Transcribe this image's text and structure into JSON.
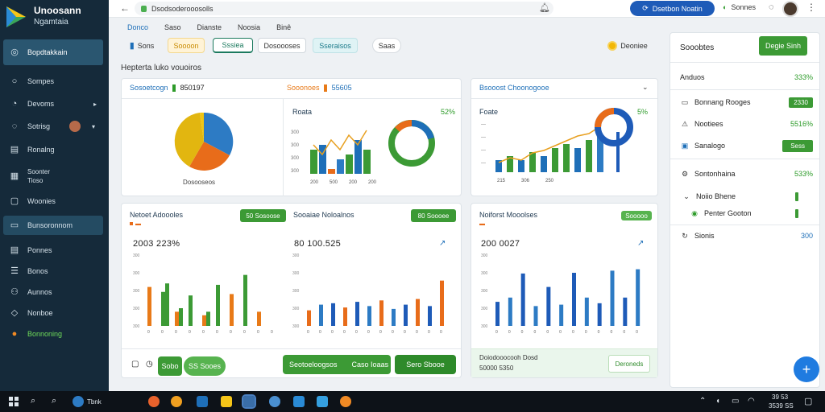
{
  "sidebar": {
    "brand_title": "Unoosann",
    "brand_subtitle": "Ngamtaia",
    "items": [
      {
        "label": "Bopdtakkain",
        "icon": "dashboard-icon"
      },
      {
        "label": "Sompes",
        "icon": "circle-icon"
      },
      {
        "label": "Devoms",
        "icon": "compass-icon"
      },
      {
        "label": "Sotrisg",
        "icon": "target-icon"
      },
      {
        "label": "Ronalng",
        "icon": "report-icon"
      },
      {
        "label": "Soonter",
        "sublabel": "Tioso",
        "icon": "calendar-icon"
      },
      {
        "label": "Woonies",
        "icon": "window-icon"
      },
      {
        "label": "Bunsoronnom",
        "icon": "folder-icon"
      },
      {
        "label": "Ponnes",
        "icon": "grid-icon"
      },
      {
        "label": "Bonos",
        "icon": "list-icon"
      },
      {
        "label": "Aunnos",
        "icon": "people-icon"
      },
      {
        "label": "Nonboe",
        "icon": "tag-icon"
      },
      {
        "label": "Bonnoning",
        "icon": "orange-circle-icon"
      }
    ]
  },
  "topbar": {
    "url": "Dsodsoderooosolls",
    "action_button": "Dsetbon Noatin",
    "status_label": "Sonnes"
  },
  "nav_tabs": [
    "Donco",
    "Saso",
    "Dianste",
    "Noosia",
    "Binê"
  ],
  "chips": {
    "a": "Sons",
    "b": "Soooon",
    "c": "Sssiea",
    "d": "Dosoooses",
    "e": "Sseraisos",
    "f": "Saas",
    "g": "Deoniee"
  },
  "section_title": "Hepterta luko vouoiros",
  "panels": {
    "p1": {
      "label": "Sosoetcogn",
      "value1": "850197",
      "value2_label": "Sooonoes",
      "value2": "55605",
      "pie_caption": "Dosooseos",
      "sub_label": "Roata",
      "sub_pct": "52%",
      "bar_ticks": [
        "300",
        "300",
        "300",
        "300"
      ],
      "bar_xlabels": [
        "200",
        "500",
        "200",
        "200"
      ]
    },
    "p2": {
      "label": "Bsooost Choonogooe",
      "sub_label": "Foate",
      "sub_pct": "5%",
      "bar_xlabels": [
        "215",
        "306",
        "250"
      ]
    },
    "p3": {
      "label": "Netoet Adoooles",
      "button": "50 Sosoose",
      "big_value": "2003 223%"
    },
    "p4": {
      "label": "Sooaiae Noloalnos",
      "button": "80 Soooee",
      "big_value": "80 100.525"
    },
    "p5": {
      "label": "Noiforst Mooolses",
      "button": "Sooooo",
      "big_value": "200 0027",
      "footer_text": "Doiodooocooh Dosd",
      "footer_value": "50000 5350",
      "footer_button": "Deroneds"
    }
  },
  "bottom_buttons": {
    "b1": "Sobo",
    "b2": "SS Sooes",
    "b3": "Seotoeloogsos",
    "b4": "Caso Ioaas",
    "b5": "Sero Sbooe"
  },
  "right_panel": {
    "title": "Sooobtes",
    "button": "Degie Sinh",
    "rows": [
      {
        "label": "Anduos",
        "value": "333%"
      },
      {
        "label": "Bonnang Rooges",
        "value": "2330",
        "icon": "card-icon"
      },
      {
        "label": "Nootiees",
        "value": "5516%",
        "icon": "alert-icon"
      },
      {
        "label": "Sanalogo",
        "value": "Sess",
        "icon": "chat-icon"
      },
      {
        "label": "Sontonhaina",
        "value": "533%",
        "icon": "gear-icon"
      },
      {
        "label": "Noiio Bhene",
        "icon": "chevron-icon"
      },
      {
        "label": "Penter Gooton",
        "icon": "check-circle-icon"
      },
      {
        "label": "Sionis",
        "value": "300",
        "icon": "refresh-icon"
      }
    ]
  },
  "taskbar": {
    "search_label": "Tbnk",
    "clock_time": "39 53",
    "clock_date": "3539 SS"
  },
  "charts": {
    "c1_colors": [
      "#e6b20a",
      "#f0c614",
      "#2d7bc4",
      "#e86c1a"
    ],
    "c2_values": [
      5,
      6,
      1,
      3,
      4,
      7,
      5
    ],
    "line_values": [
      6,
      4,
      7,
      5,
      8,
      6,
      9
    ]
  },
  "chart_data": [
    {
      "type": "bar",
      "categories": [
        "1",
        "2",
        "3",
        "4",
        "5",
        "6",
        "7",
        "8",
        "9",
        "10"
      ],
      "series": [
        {
          "values": [
            55,
            48,
            20,
            43,
            15,
            58,
            45,
            72,
            20,
            0
          ]
        },
        {
          "values": [
            0,
            60,
            25,
            0,
            20,
            0,
            0,
            0,
            0,
            0
          ]
        }
      ],
      "ylim": [
        0,
        100
      ]
    },
    {
      "type": "bar",
      "categories": [
        "1",
        "2",
        "3",
        "4",
        "5",
        "6",
        "7",
        "8",
        "9",
        "10",
        "11",
        "12"
      ],
      "series": [
        {
          "values": [
            22,
            30,
            32,
            26,
            34,
            28,
            36,
            24,
            30,
            38,
            28,
            64
          ]
        }
      ],
      "ylim": [
        0,
        100
      ]
    },
    {
      "type": "bar",
      "categories": [
        "1",
        "2",
        "3",
        "4",
        "5",
        "6",
        "7",
        "8",
        "9",
        "10",
        "11",
        "12"
      ],
      "series": [
        {
          "values": [
            34,
            40,
            74,
            28,
            55,
            30,
            75,
            40,
            32,
            78,
            40,
            80
          ]
        }
      ],
      "ylim": [
        0,
        100
      ]
    }
  ]
}
